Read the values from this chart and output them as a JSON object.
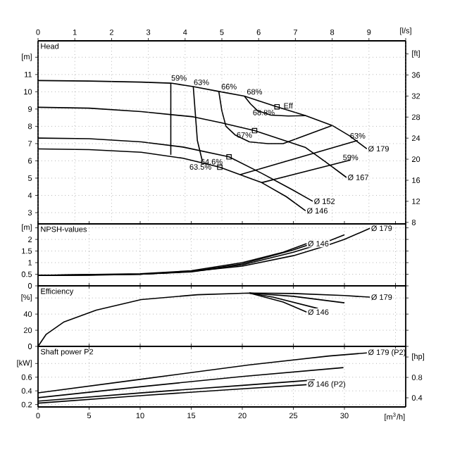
{
  "chart_data": [
    {
      "type": "line",
      "title": "Head",
      "xlim": [
        0,
        36
      ],
      "ylim": [
        2.35,
        12.95
      ],
      "yticks": [
        3,
        4,
        5,
        6,
        7,
        8,
        9,
        10,
        11,
        {
          "value": 12,
          "label": "[m]"
        }
      ],
      "y2lim": [
        7.71,
        42.49
      ],
      "y2ticks": [
        8,
        12,
        16,
        20,
        24,
        28,
        32,
        36,
        {
          "value": 40,
          "label": "[ft]"
        }
      ],
      "x2lim": [
        0,
        10
      ],
      "x2ticks": [
        0,
        1,
        2,
        3,
        4,
        5,
        6,
        7,
        8,
        9,
        {
          "value": 10,
          "label": "[l/s]"
        }
      ],
      "grid": true,
      "tick_labels": "y",
      "series": [
        {
          "name": "Ø 179",
          "color": "#000000",
          "x": [
            0,
            5,
            10.1,
            13.0,
            15.2,
            17.7,
            20.2,
            23.4,
            26.2,
            28.8,
            30.5,
            32.2
          ],
          "values": [
            10.65,
            10.62,
            10.56,
            10.5,
            10.3,
            10.02,
            9.75,
            9.13,
            8.62,
            8.05,
            7.45,
            6.7
          ]
        },
        {
          "name": "Ø 167",
          "color": "#000000",
          "x": [
            0,
            5,
            10.1,
            15.2,
            17.9,
            21.2,
            26.2,
            28.1,
            30.2
          ],
          "values": [
            9.1,
            9.05,
            8.85,
            8.55,
            8.21,
            7.75,
            6.77,
            5.96,
            5.04
          ]
        },
        {
          "name": "Ø 152",
          "color": "#000000",
          "x": [
            0,
            5,
            10.1,
            14.2,
            18.7,
            21.9,
            24.9,
            26.9
          ],
          "values": [
            7.32,
            7.28,
            7.1,
            6.8,
            6.23,
            5.28,
            4.33,
            3.66
          ]
        },
        {
          "name": "Ø 146",
          "color": "#000000",
          "x": [
            0,
            5,
            10.1,
            14.2,
            17.8,
            21.9,
            24.3,
            26.2
          ],
          "values": [
            6.69,
            6.65,
            6.5,
            6.15,
            5.63,
            4.74,
            3.93,
            3.11
          ]
        },
        {
          "color": "#000000",
          "x": [
            13.0,
            13.0
          ],
          "values": [
            10.5,
            6.35
          ]
        },
        {
          "color": "#000000",
          "x": [
            21.9,
            30.6
          ],
          "values": [
            4.74,
            6.05
          ]
        },
        {
          "color": "#000000",
          "x": [
            15.2,
            15.6,
            16.1
          ],
          "values": [
            10.3,
            7.18,
            5.96
          ]
        },
        {
          "color": "#000000",
          "x": [
            19.8,
            31.3
          ],
          "values": [
            5.2,
            7.18
          ]
        },
        {
          "color": "#000000",
          "x": [
            17.7,
            18.0,
            18.4,
            19.3,
            20.7,
            22.5,
            24.0,
            28.8
          ],
          "values": [
            10.02,
            8.9,
            8.0,
            7.5,
            7.1,
            7.0,
            7.0,
            8.05
          ]
        },
        {
          "color": "#000000",
          "x": [
            20.2,
            20.8,
            21.5,
            22.8,
            24.5,
            26.2
          ],
          "values": [
            9.75,
            9.3,
            8.9,
            8.65,
            8.6,
            8.62
          ]
        },
        {
          "type": "scatter",
          "marker": "square",
          "color": "#000000",
          "x": [
            23.4,
            21.2,
            18.7,
            17.8
          ],
          "values": [
            9.13,
            7.75,
            6.23,
            5.63
          ]
        }
      ],
      "annotations": [
        {
          "text": "59%",
          "x": 13.8,
          "y": 10.8
        },
        {
          "text": "63%",
          "x": 16.0,
          "y": 10.55
        },
        {
          "text": "66%",
          "x": 18.7,
          "y": 10.3
        },
        {
          "text": "68%",
          "x": 21.2,
          "y": 10.0
        },
        {
          "text": "Eff",
          "x": 24.5,
          "y": 9.2
        },
        {
          "text": "68.8%",
          "x": 22.1,
          "y": 8.8
        },
        {
          "text": "67%",
          "x": 20.2,
          "y": 7.5
        },
        {
          "text": "63%",
          "x": 31.3,
          "y": 7.45
        },
        {
          "text": "59%",
          "x": 30.6,
          "y": 6.2
        },
        {
          "text": "64.6%",
          "x": 17.0,
          "y": 5.95
        },
        {
          "text": "63.5%",
          "x": 15.9,
          "y": 5.65
        }
      ]
    },
    {
      "type": "line",
      "title": "NPSH-values",
      "xlim": [
        0,
        36
      ],
      "ylim": [
        0,
        2.67
      ],
      "xticks": [
        0,
        5,
        10,
        15,
        20,
        25,
        30,
        35
      ],
      "yticks": [
        0,
        0.5,
        1,
        1.5,
        2,
        {
          "value": 2.5,
          "label": "[m]"
        }
      ],
      "grid": true,
      "tick_labels": "y",
      "series": [
        {
          "name": "Ø 179",
          "color": "#000000",
          "x": [
            0,
            5,
            10,
            15,
            20,
            25,
            28,
            30,
            32.5
          ],
          "values": [
            0.45,
            0.46,
            0.5,
            0.62,
            0.85,
            1.3,
            1.7,
            2.0,
            2.48
          ]
        },
        {
          "color": "#000000",
          "x": [
            0,
            10,
            15,
            20,
            25,
            28,
            30
          ],
          "values": [
            0.45,
            0.5,
            0.6,
            0.9,
            1.45,
            1.85,
            2.2
          ]
        },
        {
          "color": "#000000",
          "x": [
            0,
            10,
            15,
            20,
            25,
            27.7
          ],
          "values": [
            0.45,
            0.5,
            0.62,
            0.95,
            1.55,
            1.95
          ]
        },
        {
          "name": "Ø 146",
          "color": "#000000",
          "x": [
            0,
            10,
            15,
            20,
            24,
            26.3
          ],
          "values": [
            0.45,
            0.52,
            0.65,
            1.0,
            1.45,
            1.82
          ]
        }
      ]
    },
    {
      "type": "line",
      "title": "Efficiency",
      "xlim": [
        0,
        36
      ],
      "ylim": [
        0,
        75
      ],
      "xticks": [
        0,
        5,
        10,
        15,
        20,
        25,
        30,
        35
      ],
      "yticks": [
        0,
        20,
        40,
        {
          "value": 60,
          "label": "[%]"
        }
      ],
      "grid": true,
      "tick_labels": "y",
      "series": [
        {
          "name": "Ø 179",
          "color": "#000000",
          "x": [
            0,
            0.8,
            2.5,
            5.7,
            10.1,
            15.6,
            20.7,
            25,
            30,
            32.5
          ],
          "values": [
            0,
            15,
            30,
            45,
            58,
            64,
            66,
            65.5,
            63,
            61
          ]
        },
        {
          "color": "#000000",
          "x": [
            20.7,
            25,
            30
          ],
          "values": [
            66,
            62,
            54
          ]
        },
        {
          "color": "#000000",
          "x": [
            20.7,
            23,
            27.4
          ],
          "values": [
            66,
            61,
            47
          ]
        },
        {
          "name": "Ø 146",
          "color": "#000000",
          "x": [
            20.7,
            24,
            26.3
          ],
          "values": [
            66,
            55,
            42.5
          ]
        }
      ]
    },
    {
      "type": "line",
      "title": "Shaft power P2",
      "xlim": [
        0,
        36
      ],
      "ylim": [
        0.165,
        1.05
      ],
      "xticks": [
        0,
        5,
        10,
        15,
        20,
        25,
        30
      ],
      "xlabel": "[m$^{3}$/h]",
      "yticks": [
        0.2,
        0.4,
        0.6,
        {
          "value": 0.8,
          "label": "[kW]"
        }
      ],
      "y2lim": [
        0.221,
        1.408
      ],
      "y2ticks": [
        0.4,
        0.8,
        {
          "value": 1.2,
          "label": "[hp]"
        }
      ],
      "grid": true,
      "series": [
        {
          "name": "Ø 179 (P2)",
          "color": "#000000",
          "x": [
            0,
            10.1,
            20.7,
            28.5,
            32.2
          ],
          "values": [
            0.37,
            0.57,
            0.78,
            0.91,
            0.955
          ]
        },
        {
          "color": "#000000",
          "x": [
            0,
            10,
            20,
            29.9
          ],
          "values": [
            0.3,
            0.46,
            0.61,
            0.74
          ]
        },
        {
          "color": "#000000",
          "x": [
            0,
            10,
            20,
            27.1
          ],
          "values": [
            0.25,
            0.37,
            0.48,
            0.56
          ]
        },
        {
          "name": "Ø 146 (P2)",
          "color": "#000000",
          "x": [
            0,
            10,
            20,
            26.3
          ],
          "values": [
            0.22,
            0.33,
            0.43,
            0.49
          ]
        }
      ]
    }
  ]
}
